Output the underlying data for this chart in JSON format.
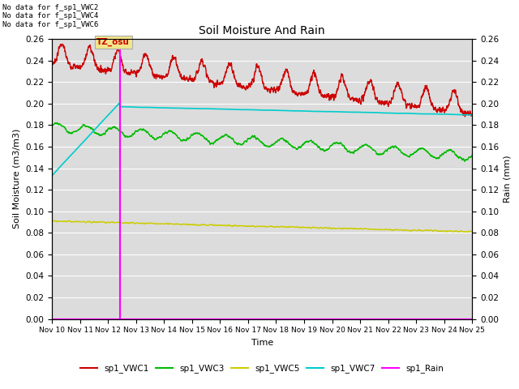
{
  "title": "Soil Moisture And Rain",
  "xlabel": "Time",
  "ylabel_left": "Soil Moisture (m3/m3)",
  "ylabel_right": "Rain (mm)",
  "ylim": [
    0.0,
    0.26
  ],
  "plot_bg_color": "#dcdcdc",
  "no_data_lines": [
    "No data for f_sp1_VWC2",
    "No data for f_sp1_VWC4",
    "No data for f_sp1_VWC6"
  ],
  "tz_label": "TZ_osu",
  "tz_box_color": "#f0e68c",
  "tz_text_color": "#cc0000",
  "vline_x": 12.42,
  "vline_color": "magenta",
  "legend_entries": [
    "sp1_VWC1",
    "sp1_VWC3",
    "sp1_VWC5",
    "sp1_VWC7",
    "sp1_Rain"
  ],
  "legend_colors": [
    "#cc0000",
    "#00bb00",
    "#cccc00",
    "#00cccc",
    "#ff00ff"
  ],
  "x_tick_labels": [
    "Nov 10",
    "Nov 11",
    "Nov 12",
    "Nov 13",
    "Nov 14",
    "Nov 15",
    "Nov 16",
    "Nov 17",
    "Nov 18",
    "Nov 19",
    "Nov 20",
    "Nov 21",
    "Nov 22",
    "Nov 23",
    "Nov 24",
    "Nov 25"
  ],
  "x_tick_positions": [
    10,
    11,
    12,
    13,
    14,
    15,
    16,
    17,
    18,
    19,
    20,
    21,
    22,
    23,
    24,
    25
  ],
  "xlim": [
    10,
    25
  ],
  "yticks": [
    0.0,
    0.02,
    0.04,
    0.06,
    0.08,
    0.1,
    0.12,
    0.14,
    0.16,
    0.18,
    0.2,
    0.22,
    0.24,
    0.26
  ]
}
